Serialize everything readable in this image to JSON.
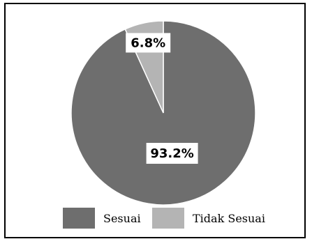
{
  "chart_data": {
    "type": "pie",
    "title": "",
    "slices": [
      {
        "label": "Sesuai",
        "value": 93.2,
        "value_label": "93.2%",
        "color": "#6e6e6e"
      },
      {
        "label": "Tidak Sesuai",
        "value": 6.8,
        "value_label": "6.8%",
        "color": "#b4b4b4"
      }
    ],
    "start_angle_deg": 0,
    "direction": "clockwise",
    "legend_position": "bottom",
    "data_label_background": "#ffffff"
  }
}
